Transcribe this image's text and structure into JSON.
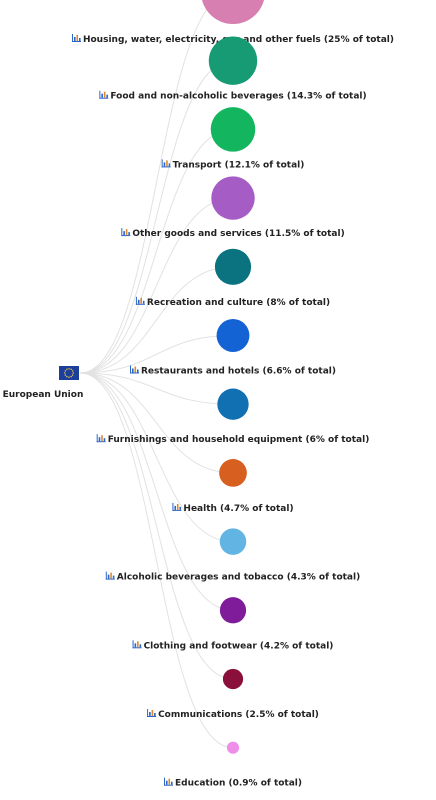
{
  "chart_data": {
    "type": "tree",
    "root": {
      "label": "European Union",
      "icon": "eu-flag-icon"
    },
    "nodes": [
      {
        "label": "Housing, water, electricity, gas and other fuels (25% of total)",
        "share": 25,
        "color": "#d77fb0"
      },
      {
        "label": "Food and non-alcoholic beverages (14.3% of total)",
        "share": 14.3,
        "color": "#169b74"
      },
      {
        "label": "Transport (12.1% of total)",
        "share": 12.1,
        "color": "#13b65e"
      },
      {
        "label": "Other goods and services (11.5% of total)",
        "share": 11.5,
        "color": "#a55cc4"
      },
      {
        "label": "Recreation and culture (8% of total)",
        "share": 8,
        "color": "#0b7280"
      },
      {
        "label": "Restaurants and hotels (6.6% of total)",
        "share": 6.6,
        "color": "#1463d4"
      },
      {
        "label": "Furnishings and household equipment (6% of total)",
        "share": 6,
        "color": "#1170b2"
      },
      {
        "label": "Health (4.7% of total)",
        "share": 4.7,
        "color": "#d75f1f"
      },
      {
        "label": "Alcoholic beverages and tobacco (4.3% of total)",
        "share": 4.3,
        "color": "#62b4e2"
      },
      {
        "label": "Clothing and footwear (4.2% of total)",
        "share": 4.2,
        "color": "#7f1c9a"
      },
      {
        "label": "Communications (2.5% of total)",
        "share": 2.5,
        "color": "#8a0f3a"
      },
      {
        "label": "Education (0.9% of total)",
        "share": 0.9,
        "color": "#ee8ee8"
      }
    ],
    "node_icon": "bar-chart-icon",
    "link_color": "#e2e2e2"
  }
}
